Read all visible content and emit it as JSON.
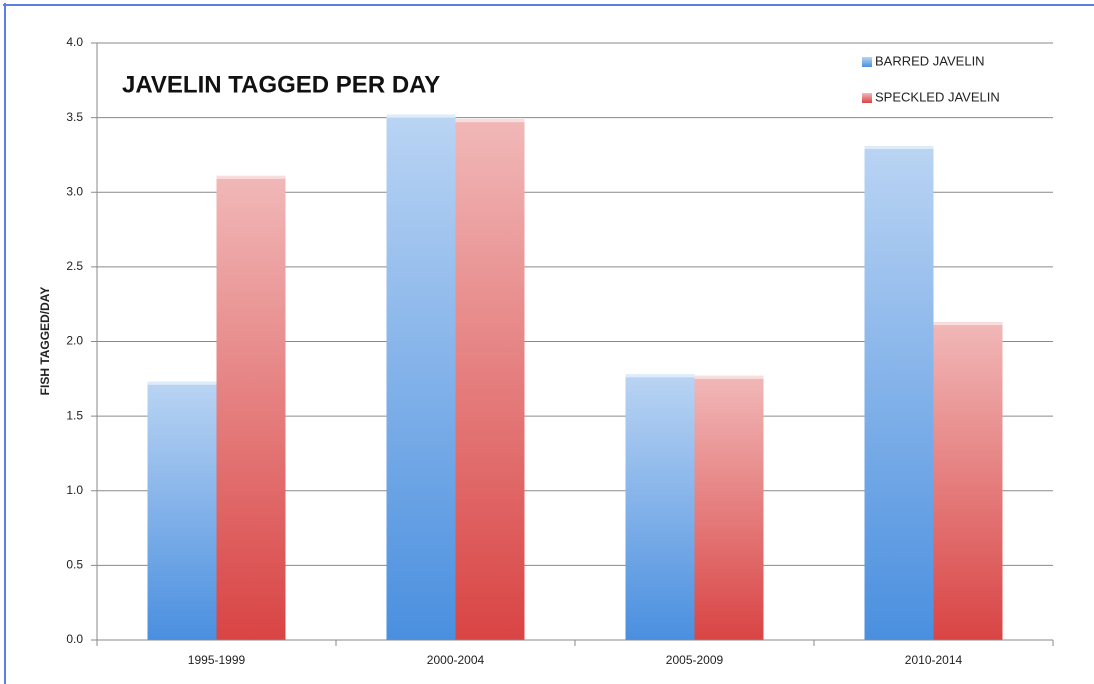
{
  "chart_data": {
    "type": "bar",
    "title": "JAVELIN TAGGED PER DAY",
    "y_label": "FISH TAGGED/DAY",
    "categories": [
      "1995-1999",
      "2000-2004",
      "2005-2009",
      "2010-2014"
    ],
    "series": [
      {
        "name": "BARRED JAVELIN",
        "color": "#4a8fdf",
        "values": [
          1.73,
          3.52,
          1.78,
          3.31
        ]
      },
      {
        "name": "SPECKLED JAVELIN",
        "color": "#d94444",
        "values": [
          3.11,
          3.49,
          1.77,
          2.13
        ]
      }
    ],
    "ylim": [
      0,
      4
    ],
    "yticks": [
      {
        "value": 0,
        "label": "0.0"
      },
      0.5,
      {
        "value": 1,
        "label": "1.0"
      },
      1.5,
      {
        "value": 2,
        "label": "2.0"
      },
      2.5,
      {
        "value": 3,
        "label": "3.0"
      },
      3.5,
      {
        "value": 4,
        "label": "4.0"
      }
    ],
    "grid": true,
    "legend": "top-right"
  }
}
